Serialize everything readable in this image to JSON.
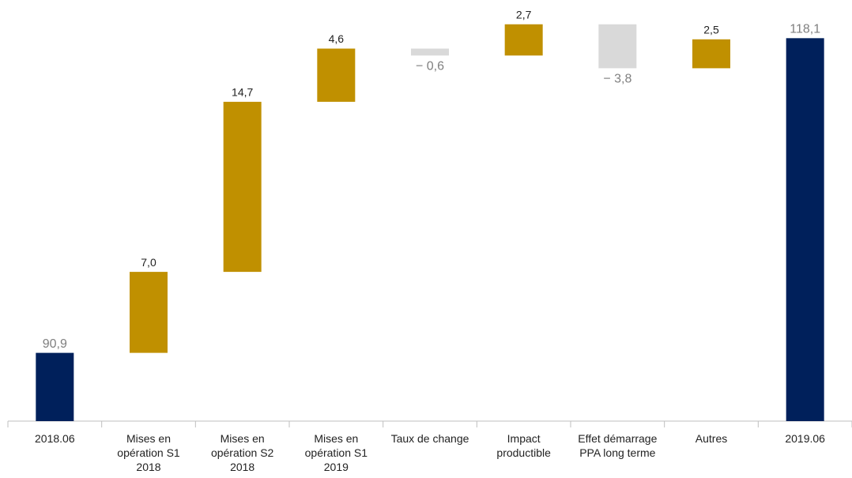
{
  "chart_data": {
    "type": "waterfall",
    "categories": [
      "2018.06",
      "Mises en opération S1 2018",
      "Mises en opération S2 2018",
      "Mises en opération S1 2019",
      "Taux de change",
      "Impact productible",
      "Effet démarrage PPA long terme",
      "Autres",
      "2019.06"
    ],
    "values": [
      90.9,
      7.0,
      14.7,
      4.6,
      -0.6,
      2.7,
      -3.8,
      2.5,
      118.1
    ],
    "value_labels": [
      "90,9",
      "7,0",
      "14,7",
      "4,6",
      "− 0,6",
      "2,7",
      "−  3,8",
      "2,5",
      "118,1"
    ],
    "colors": [
      "#00205b",
      "#c09000",
      "#c09000",
      "#c09000",
      "#d9d9d9",
      "#c09000",
      "#d9d9d9",
      "#c09000",
      "#00205b"
    ],
    "ylim": [
      85,
      121.4
    ]
  }
}
